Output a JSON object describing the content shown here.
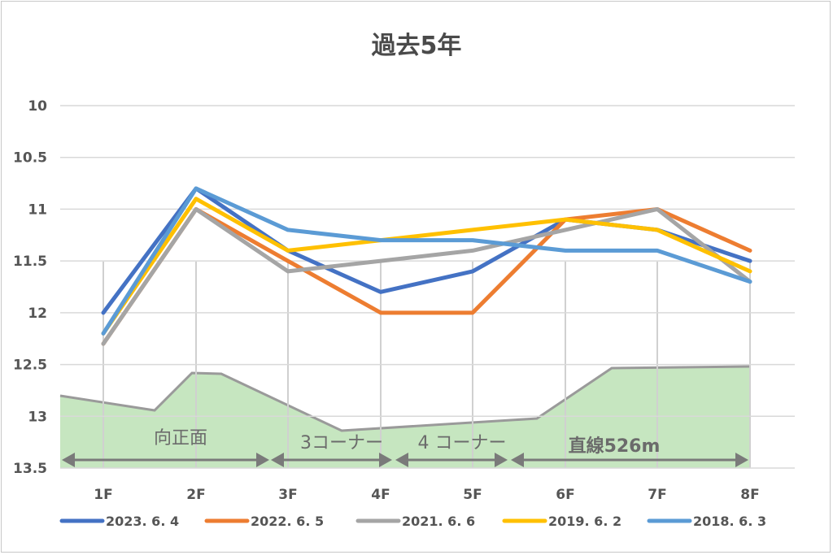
{
  "chart_data": {
    "type": "line",
    "title": "過去5年",
    "categories": [
      "1F",
      "2F",
      "3F",
      "4F",
      "5F",
      "6F",
      "7F",
      "8F"
    ],
    "ylim": [
      10,
      13.5
    ],
    "y_inverted": true,
    "y_ticks": [
      "10",
      "10.5",
      "11",
      "11.5",
      "12",
      "12.5",
      "13",
      "13.5"
    ],
    "grid": true,
    "legend_position": "bottom",
    "series": [
      {
        "name": "2023. 6. 4",
        "color": "#4472C4",
        "values": [
          12.0,
          10.8,
          11.4,
          11.8,
          11.6,
          11.1,
          11.2,
          11.5
        ]
      },
      {
        "name": "2022. 6. 5",
        "color": "#ED7D31",
        "values": [
          12.3,
          11.0,
          11.5,
          12.0,
          12.0,
          11.1,
          11.0,
          11.4
        ]
      },
      {
        "name": "2021. 6. 6",
        "color": "#A5A5A5",
        "values": [
          12.3,
          11.0,
          11.6,
          11.5,
          11.4,
          11.2,
          11.0,
          11.7
        ]
      },
      {
        "name": "2019. 6. 2",
        "color": "#FFC000",
        "values": [
          12.2,
          10.9,
          11.4,
          11.3,
          11.2,
          11.1,
          11.2,
          11.6
        ]
      },
      {
        "name": "2018. 6. 3",
        "color": "#5B9BD5",
        "values": [
          12.2,
          10.8,
          11.2,
          11.3,
          11.3,
          11.4,
          11.4,
          11.7
        ]
      }
    ],
    "course_sections": [
      "向正面",
      "3コーナー",
      "4 コーナー",
      "直線526m"
    ]
  }
}
